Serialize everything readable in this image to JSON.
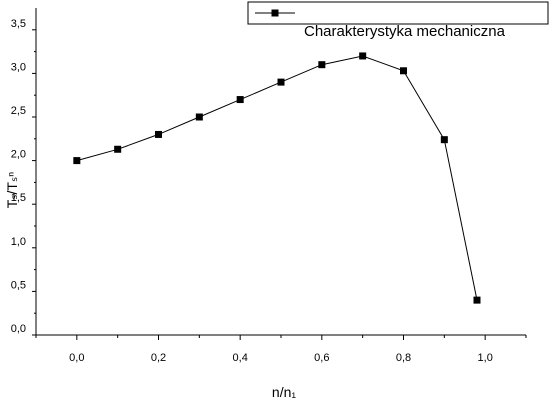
{
  "chart_data": {
    "type": "line",
    "xlabel": "n/n₁",
    "ylabel": "Tₛ/Tₛⁿ",
    "xlim": [
      -0.1,
      1.1
    ],
    "ylim": [
      0.0,
      3.75
    ],
    "x_ticks": [
      0.0,
      0.2,
      0.4,
      0.6,
      0.8,
      1.0
    ],
    "x_tick_labels": [
      "0,0",
      "0,2",
      "0,4",
      "0,6",
      "0,8",
      "1,0"
    ],
    "y_ticks": [
      0.0,
      0.5,
      1.0,
      1.5,
      2.0,
      2.5,
      3.0,
      3.5
    ],
    "y_tick_labels": [
      "0,0",
      "0,5",
      "1,0",
      "1,5",
      "2,0",
      "2,5",
      "3,0",
      "3,5"
    ],
    "grid": false,
    "legend_position": "top-right",
    "series": [
      {
        "name": "Charakterystyka mechaniczna",
        "color": "#000000",
        "marker": "square",
        "x": [
          0.0,
          0.1,
          0.2,
          0.3,
          0.4,
          0.5,
          0.6,
          0.7,
          0.8,
          0.9,
          0.98
        ],
        "y": [
          2.0,
          2.13,
          2.3,
          2.5,
          2.7,
          2.9,
          3.1,
          3.2,
          3.03,
          2.24,
          0.4
        ]
      }
    ]
  }
}
